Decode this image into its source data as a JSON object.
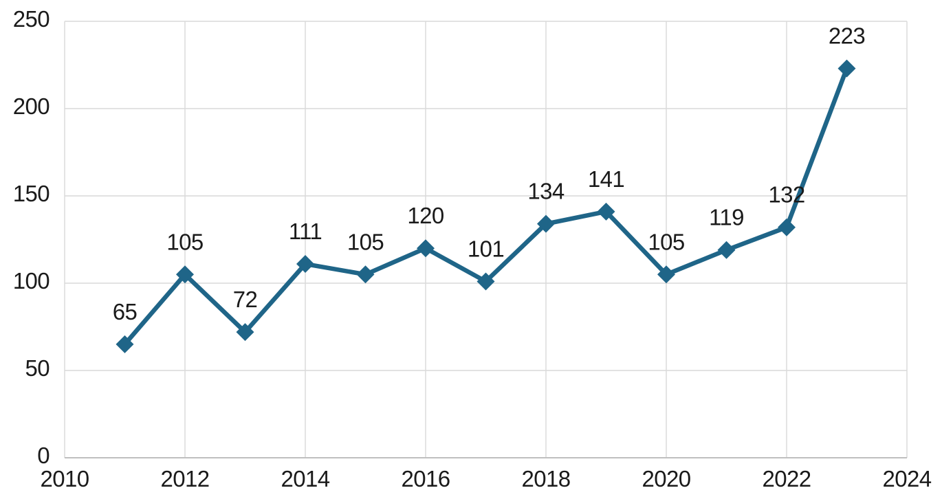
{
  "chart_data": {
    "type": "line",
    "title": "",
    "xlabel": "",
    "ylabel": "",
    "x": [
      2011,
      2012,
      2013,
      2014,
      2015,
      2016,
      2017,
      2018,
      2019,
      2020,
      2021,
      2022,
      2023
    ],
    "values": [
      65,
      105,
      72,
      111,
      105,
      120,
      101,
      134,
      141,
      105,
      119,
      132,
      223
    ],
    "data_labels": [
      "65",
      "105",
      "72",
      "111",
      "105",
      "120",
      "101",
      "134",
      "141",
      "105",
      "119",
      "132",
      "223"
    ],
    "data_labels_position": "above",
    "xlim": [
      2010,
      2024
    ],
    "ylim": [
      0,
      250
    ],
    "x_ticks": [
      2010,
      2012,
      2014,
      2016,
      2018,
      2020,
      2022,
      2024
    ],
    "y_ticks": [
      0,
      50,
      100,
      150,
      200,
      250
    ],
    "grid": true,
    "legend_position": "none",
    "marker": "diamond",
    "colors": {
      "line": "#1F6588",
      "marker": "#1F6588",
      "text": "#1A1A1A",
      "gridline": "#D9D9D9",
      "axis_line": "#BFBFBF",
      "background": "#FFFFFF"
    }
  }
}
